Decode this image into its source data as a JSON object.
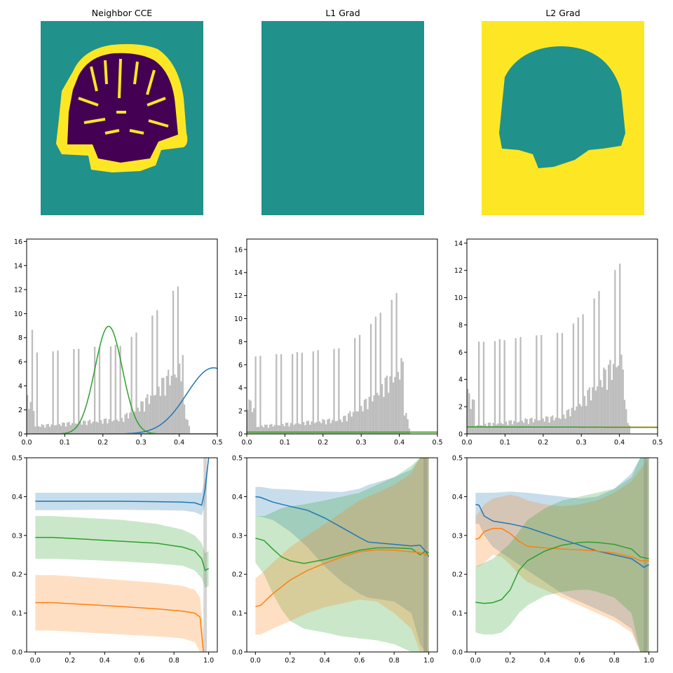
{
  "colors": {
    "teal": "#21918c",
    "yellow": "#fde725",
    "purple": "#440154",
    "hist": "#bdbdbd",
    "blue": "#1f77b4",
    "orange": "#ff7f0e",
    "green": "#2ca02c",
    "axis": "#000000"
  },
  "chart_data": [
    {
      "type": "heatmap",
      "title": "Neighbor CCE",
      "description_colors": [
        "teal background",
        "yellow tissue boundary",
        "purple interior"
      ]
    },
    {
      "type": "heatmap",
      "title": "L1 Grad"
    },
    {
      "type": "heatmap",
      "title": "L2 Grad"
    },
    {
      "type": "bar+line",
      "xlim": [
        0,
        0.5
      ],
      "ylim": [
        0,
        16.2
      ],
      "xticks": [
        "0.0",
        "0.1",
        "0.2",
        "0.3",
        "0.4",
        "0.5"
      ],
      "yticks": [
        "0",
        "2",
        "4",
        "6",
        "8",
        "10",
        "12",
        "14",
        "16"
      ],
      "series": [
        {
          "color": "green",
          "kind": "gaussian",
          "mu": 0.215,
          "sigma": 0.036,
          "peak": 8.95
        },
        {
          "color": "blue",
          "kind": "gaussian",
          "mu": 0.49,
          "sigma": 0.07,
          "peak": 5.5
        },
        {
          "color": "orange",
          "kind": "flat",
          "value": 0.02
        }
      ]
    },
    {
      "type": "bar+line",
      "xlim": [
        0,
        0.5
      ],
      "ylim": [
        0,
        16.9
      ],
      "xticks": [
        "0.0",
        "0.1",
        "0.2",
        "0.3",
        "0.4",
        "0.5"
      ],
      "yticks": [
        "0",
        "2",
        "4",
        "6",
        "8",
        "10",
        "12",
        "14",
        "16"
      ],
      "series": [
        {
          "color": "orange",
          "kind": "flat",
          "value": 0.15
        },
        {
          "color": "green",
          "kind": "flat",
          "value": 0.16
        }
      ]
    },
    {
      "type": "bar+line",
      "xlim": [
        0,
        0.5
      ],
      "ylim": [
        0,
        14.3
      ],
      "xticks": [
        "0.0",
        "0.1",
        "0.2",
        "0.3",
        "0.4",
        "0.5"
      ],
      "yticks": [
        "0",
        "2",
        "4",
        "6",
        "8",
        "10",
        "12",
        "14"
      ],
      "series": [
        {
          "color": "orange",
          "kind": "flat",
          "value": 0.5
        },
        {
          "color": "green",
          "kind": "linear",
          "start": 0.52,
          "end": 0.48
        }
      ]
    },
    {
      "type": "line",
      "xlim": [
        -0.05,
        1.05
      ],
      "ylim": [
        0,
        0.5
      ],
      "xticks": [
        "0.0",
        "0.2",
        "0.4",
        "0.6",
        "0.8",
        "1.0"
      ],
      "yticks": [
        "0.0",
        "0.1",
        "0.2",
        "0.3",
        "0.4",
        "0.5"
      ],
      "series": [
        {
          "color": "blue",
          "x": [
            0,
            0.1,
            0.3,
            0.5,
            0.7,
            0.85,
            0.92,
            0.96,
            0.98,
            1.0
          ],
          "y": [
            0.388,
            0.388,
            0.388,
            0.388,
            0.387,
            0.386,
            0.384,
            0.378,
            0.42,
            0.5
          ],
          "band_upper": [
            0.41,
            0.41,
            0.41,
            0.41,
            0.41,
            0.41,
            0.41,
            0.41,
            0.45,
            0.5
          ],
          "band_lower": [
            0.365,
            0.365,
            0.366,
            0.366,
            0.365,
            0.364,
            0.36,
            0.352,
            0.38,
            0.5
          ]
        },
        {
          "color": "green",
          "x": [
            0,
            0.1,
            0.3,
            0.5,
            0.7,
            0.85,
            0.92,
            0.96,
            0.98,
            1.0
          ],
          "y": [
            0.295,
            0.295,
            0.29,
            0.285,
            0.28,
            0.27,
            0.26,
            0.24,
            0.21,
            0.215
          ],
          "band_upper": [
            0.35,
            0.35,
            0.345,
            0.34,
            0.33,
            0.315,
            0.3,
            0.28,
            0.255,
            0.26
          ],
          "band_lower": [
            0.24,
            0.24,
            0.237,
            0.233,
            0.228,
            0.222,
            0.21,
            0.19,
            0.165,
            0.17
          ]
        },
        {
          "color": "orange",
          "x": [
            0,
            0.1,
            0.3,
            0.5,
            0.7,
            0.85,
            0.92,
            0.95,
            0.97
          ],
          "y": [
            0.127,
            0.127,
            0.122,
            0.117,
            0.111,
            0.105,
            0.1,
            0.09,
            0.0
          ],
          "band_upper": [
            0.198,
            0.198,
            0.192,
            0.185,
            0.178,
            0.17,
            0.16,
            0.14,
            0.05
          ],
          "band_lower": [
            0.055,
            0.055,
            0.05,
            0.045,
            0.04,
            0.035,
            0.025,
            0.0,
            0.0
          ]
        }
      ]
    },
    {
      "type": "line",
      "xlim": [
        -0.05,
        1.05
      ],
      "ylim": [
        0,
        0.5
      ],
      "xticks": [
        "0.0",
        "0.2",
        "0.4",
        "0.6",
        "0.8",
        "1.0"
      ],
      "yticks": [
        "0.0",
        "0.1",
        "0.2",
        "0.3",
        "0.4",
        "0.5"
      ],
      "series": [
        {
          "color": "blue",
          "x": [
            0,
            0.03,
            0.1,
            0.2,
            0.3,
            0.4,
            0.5,
            0.6,
            0.65,
            0.8,
            0.9,
            0.95,
            0.98,
            1.0
          ],
          "y": [
            0.4,
            0.398,
            0.386,
            0.375,
            0.365,
            0.345,
            0.32,
            0.295,
            0.283,
            0.277,
            0.273,
            0.275,
            0.26,
            0.245
          ],
          "band_upper": [
            0.425,
            0.425,
            0.42,
            0.418,
            0.415,
            0.413,
            0.412,
            0.42,
            0.43,
            0.45,
            0.47,
            0.5,
            0.5,
            0.5
          ],
          "band_lower": [
            0.35,
            0.348,
            0.34,
            0.31,
            0.27,
            0.22,
            0.18,
            0.15,
            0.14,
            0.13,
            0.1,
            0.02,
            0.0,
            0.0
          ]
        },
        {
          "color": "green",
          "x": [
            0,
            0.05,
            0.1,
            0.15,
            0.2,
            0.28,
            0.4,
            0.5,
            0.6,
            0.7,
            0.8,
            0.9,
            0.95,
            0.98,
            1.0
          ],
          "y": [
            0.293,
            0.287,
            0.265,
            0.245,
            0.235,
            0.228,
            0.238,
            0.25,
            0.262,
            0.268,
            0.268,
            0.266,
            0.25,
            0.26,
            0.255
          ],
          "band_upper": [
            0.35,
            0.35,
            0.36,
            0.37,
            0.375,
            0.38,
            0.39,
            0.4,
            0.41,
            0.43,
            0.45,
            0.48,
            0.5,
            0.5,
            0.5
          ],
          "band_lower": [
            0.23,
            0.2,
            0.15,
            0.11,
            0.08,
            0.06,
            0.05,
            0.04,
            0.035,
            0.03,
            0.02,
            0.0,
            0.0,
            0.0,
            0.0
          ]
        },
        {
          "color": "orange",
          "x": [
            0,
            0.03,
            0.1,
            0.2,
            0.3,
            0.4,
            0.5,
            0.6,
            0.7,
            0.8,
            0.9,
            0.95,
            0.98,
            1.0
          ],
          "y": [
            0.117,
            0.12,
            0.15,
            0.185,
            0.21,
            0.228,
            0.245,
            0.258,
            0.263,
            0.262,
            0.258,
            0.256,
            0.25,
            0.25
          ],
          "band_upper": [
            0.19,
            0.2,
            0.23,
            0.27,
            0.3,
            0.33,
            0.36,
            0.39,
            0.41,
            0.43,
            0.46,
            0.5,
            0.5,
            0.5
          ],
          "band_lower": [
            0.045,
            0.045,
            0.06,
            0.08,
            0.1,
            0.115,
            0.125,
            0.135,
            0.13,
            0.1,
            0.06,
            0.0,
            0.0,
            0.0
          ]
        }
      ]
    },
    {
      "type": "line",
      "xlim": [
        -0.05,
        1.05
      ],
      "ylim": [
        0,
        0.5
      ],
      "xticks": [
        "0.0",
        "0.2",
        "0.4",
        "0.6",
        "0.8",
        "1.0"
      ],
      "yticks": [
        "0.0",
        "0.1",
        "0.2",
        "0.3",
        "0.4",
        "0.5"
      ],
      "series": [
        {
          "color": "blue",
          "x": [
            0,
            0.02,
            0.05,
            0.1,
            0.2,
            0.3,
            0.4,
            0.5,
            0.6,
            0.7,
            0.8,
            0.9,
            0.95,
            0.97,
            1.0
          ],
          "y": [
            0.38,
            0.378,
            0.35,
            0.337,
            0.33,
            0.32,
            0.305,
            0.29,
            0.275,
            0.26,
            0.25,
            0.24,
            0.225,
            0.218,
            0.225
          ],
          "band_upper": [
            0.41,
            0.41,
            0.41,
            0.41,
            0.413,
            0.41,
            0.405,
            0.4,
            0.395,
            0.4,
            0.42,
            0.46,
            0.5,
            0.5,
            0.5
          ],
          "band_lower": [
            0.33,
            0.33,
            0.3,
            0.27,
            0.24,
            0.21,
            0.18,
            0.15,
            0.13,
            0.11,
            0.09,
            0.06,
            0.0,
            0.0,
            0.0
          ]
        },
        {
          "color": "orange",
          "x": [
            0,
            0.02,
            0.05,
            0.1,
            0.15,
            0.2,
            0.25,
            0.3,
            0.4,
            0.5,
            0.6,
            0.7,
            0.8,
            0.9,
            0.95,
            1.0
          ],
          "y": [
            0.29,
            0.293,
            0.31,
            0.318,
            0.318,
            0.305,
            0.285,
            0.272,
            0.268,
            0.265,
            0.263,
            0.26,
            0.255,
            0.245,
            0.235,
            0.235
          ],
          "band_upper": [
            0.35,
            0.36,
            0.38,
            0.395,
            0.4,
            0.405,
            0.4,
            0.39,
            0.38,
            0.375,
            0.38,
            0.39,
            0.41,
            0.44,
            0.47,
            0.5
          ],
          "band_lower": [
            0.22,
            0.22,
            0.23,
            0.25,
            0.245,
            0.225,
            0.2,
            0.18,
            0.16,
            0.14,
            0.12,
            0.1,
            0.08,
            0.05,
            0.0,
            0.0
          ]
        },
        {
          "color": "green",
          "x": [
            0,
            0.05,
            0.1,
            0.15,
            0.2,
            0.25,
            0.3,
            0.4,
            0.5,
            0.6,
            0.65,
            0.7,
            0.8,
            0.9,
            0.95,
            1.0
          ],
          "y": [
            0.128,
            0.125,
            0.127,
            0.135,
            0.16,
            0.21,
            0.235,
            0.26,
            0.275,
            0.282,
            0.283,
            0.282,
            0.277,
            0.265,
            0.245,
            0.24
          ],
          "band_upper": [
            0.22,
            0.23,
            0.24,
            0.26,
            0.28,
            0.31,
            0.34,
            0.37,
            0.39,
            0.4,
            0.405,
            0.41,
            0.42,
            0.45,
            0.5,
            0.5
          ],
          "band_lower": [
            0.05,
            0.045,
            0.045,
            0.05,
            0.07,
            0.1,
            0.12,
            0.145,
            0.155,
            0.16,
            0.16,
            0.155,
            0.14,
            0.1,
            0.0,
            0.0
          ]
        }
      ]
    }
  ]
}
